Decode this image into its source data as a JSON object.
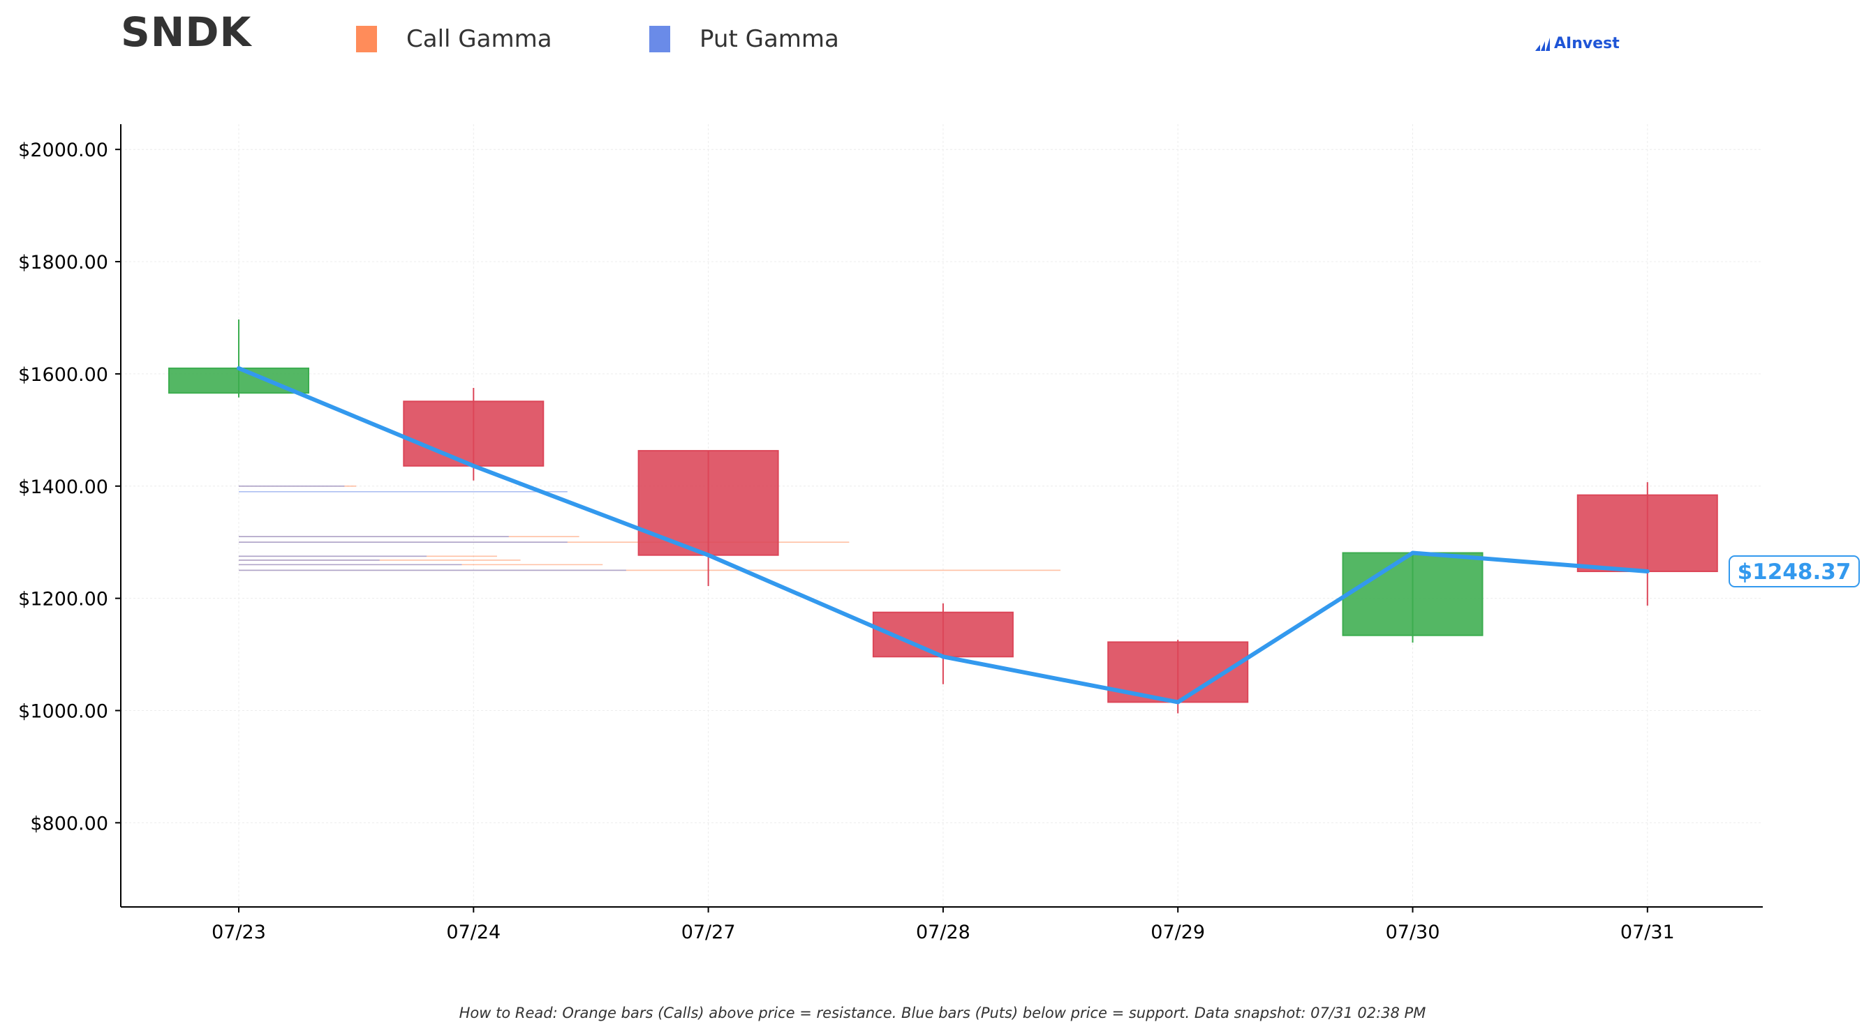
{
  "header": {
    "ticker": "SNDK",
    "legend": [
      {
        "label": "Call Gamma",
        "color": "#ff8c5a"
      },
      {
        "label": "Put Gamma",
        "color": "#6a8be8"
      }
    ],
    "brand": "AInvest"
  },
  "footnote": "How to Read: Orange bars (Calls) above price = resistance. Blue bars (Puts) below price = support. Data snapshot: 07/31 02:38 PM",
  "chart_data": {
    "type": "candlestick",
    "ticker": "SNDK",
    "categories": [
      "07/23",
      "07/24",
      "07/27",
      "07/28",
      "07/29",
      "07/30",
      "07/31"
    ],
    "ylim": [
      650,
      2045
    ],
    "yticks": [
      800,
      1000,
      1200,
      1400,
      1600,
      1800,
      2000
    ],
    "ytick_labels": [
      "$800.00",
      "$1000.00",
      "$1200.00",
      "$1400.00",
      "$1600.00",
      "$1800.00",
      "$2000.00"
    ],
    "ohlc": [
      {
        "date": "07/23",
        "open": 1566,
        "high": 1697,
        "low": 1558,
        "close": 1610
      },
      {
        "date": "07/24",
        "open": 1551,
        "high": 1575,
        "low": 1410,
        "close": 1436
      },
      {
        "date": "07/27",
        "open": 1463,
        "high": 1463,
        "low": 1222,
        "close": 1277
      },
      {
        "date": "07/28",
        "open": 1175,
        "high": 1191,
        "low": 1047,
        "close": 1096
      },
      {
        "date": "07/29",
        "open": 1122,
        "high": 1126,
        "low": 995,
        "close": 1015
      },
      {
        "date": "07/30",
        "open": 1134,
        "high": 1281,
        "low": 1121,
        "close": 1281
      },
      {
        "date": "07/31",
        "open": 1384,
        "high": 1407,
        "low": 1187,
        "close": 1248
      }
    ],
    "price_line": {
      "values": [
        1610,
        1436,
        1277,
        1096,
        1015,
        1281,
        1248
      ],
      "color": "#3399ee"
    },
    "last_price_label": "$1248.37",
    "gamma_levels": {
      "calls": [
        {
          "price": 1400,
          "extent": 0.5
        },
        {
          "price": 1310,
          "extent": 1.45
        },
        {
          "price": 1300,
          "extent": 2.6
        },
        {
          "price": 1275,
          "extent": 1.1
        },
        {
          "price": 1268,
          "extent": 1.2
        },
        {
          "price": 1260,
          "extent": 1.55
        },
        {
          "price": 1250,
          "extent": 3.5
        }
      ],
      "puts": [
        {
          "price": 1400,
          "extent": 0.45
        },
        {
          "price": 1390,
          "extent": 1.4
        },
        {
          "price": 1310,
          "extent": 1.15
        },
        {
          "price": 1300,
          "extent": 1.4
        },
        {
          "price": 1275,
          "extent": 0.8
        },
        {
          "price": 1268,
          "extent": 0.6
        },
        {
          "price": 1260,
          "extent": 0.95
        },
        {
          "price": 1250,
          "extent": 1.65
        }
      ]
    },
    "colors": {
      "up": "#3cad4f",
      "down": "#dc4658",
      "call": "#ff8c5a",
      "put": "#6a8be8"
    },
    "grid": true
  }
}
